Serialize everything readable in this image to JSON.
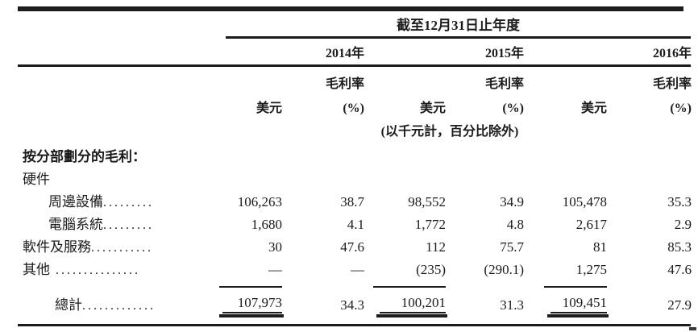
{
  "page": {
    "background": "#ffffff",
    "text_color": "#1b1b1b",
    "rule_color": "#1c1c1c"
  },
  "table": {
    "period_header": "截至12月31日止年度",
    "years": [
      "2014年",
      "2015年",
      "2016年"
    ],
    "col_headers": {
      "usd": "美元",
      "margin": "毛利率",
      "pct": "(%)"
    },
    "units_note": "(以千元計，百分比除外)",
    "section_title": "按分部劃分的毛利：",
    "rows": [
      {
        "label": "硬件",
        "leader": "",
        "values": [
          "",
          "",
          "",
          "",
          "",
          ""
        ]
      },
      {
        "label": "周邊設備",
        "leader": ".........",
        "values": [
          "106,263",
          "38.7",
          "98,552",
          "34.9",
          "105,478",
          "35.3"
        ]
      },
      {
        "label": "電腦系統",
        "leader": ".........",
        "values": [
          "1,680",
          "4.1",
          "1,772",
          "4.8",
          "2,617",
          "2.9"
        ]
      },
      {
        "label": "軟件及服務",
        "leader": "...........",
        "values": [
          "30",
          "47.6",
          "112",
          "75.7",
          "81",
          "85.3"
        ]
      },
      {
        "label": "其他",
        "leader": " ...............",
        "values": [
          "—",
          "—",
          "(235)",
          "(290.1)",
          "1,275",
          "47.6"
        ]
      },
      {
        "label": "總計",
        "leader": ".............",
        "values": [
          "107,973",
          "34.3",
          "100,201",
          "31.3",
          "109,451",
          "27.9"
        ]
      }
    ]
  }
}
